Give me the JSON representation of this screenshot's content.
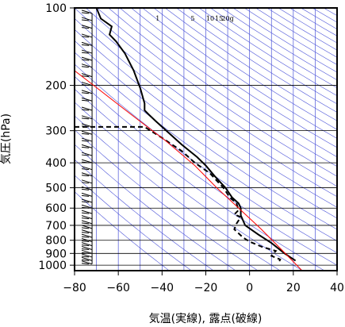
{
  "chart_data": {
    "type": "line",
    "title": "",
    "xlabel": "気温(実線), 露点(破線)",
    "ylabel": "気圧(hPa)",
    "xlim": [
      -80,
      40
    ],
    "ylim": [
      100,
      1050
    ],
    "y_scale": "log",
    "x_ticks": [
      -80,
      -60,
      -40,
      -20,
      0,
      20,
      40
    ],
    "y_ticks": [
      100,
      200,
      300,
      400,
      500,
      600,
      700,
      800,
      900,
      1000
    ],
    "grid": true,
    "mixing_ratio_labels": [
      "1",
      "5",
      "10",
      "15",
      "20g"
    ],
    "series": [
      {
        "style": "solid",
        "color": "#000000",
        "points": [
          [
            -70,
            100
          ],
          [
            -68,
            110
          ],
          [
            -63,
            118
          ],
          [
            -64,
            127
          ],
          [
            -61,
            135
          ],
          [
            -57,
            150
          ],
          [
            -53,
            175
          ],
          [
            -50,
            205
          ],
          [
            -48,
            235
          ],
          [
            -48,
            250
          ],
          [
            -46,
            260
          ],
          [
            -43,
            275
          ],
          [
            -38,
            300
          ],
          [
            -31,
            340
          ],
          [
            -24,
            380
          ],
          [
            -20,
            410
          ],
          [
            -16,
            450
          ],
          [
            -11,
            500
          ],
          [
            -8,
            545
          ],
          [
            -5,
            575
          ],
          [
            -4,
            600
          ],
          [
            -4,
            640
          ],
          [
            -2,
            700
          ],
          [
            4,
            760
          ],
          [
            10,
            820
          ],
          [
            16,
            900
          ],
          [
            21,
            960
          ]
        ]
      },
      {
        "style": "dashed",
        "color": "#000000",
        "points": [
          [
            -80,
            290
          ],
          [
            -48,
            290
          ],
          [
            -40,
            320
          ],
          [
            -31,
            360
          ],
          [
            -25,
            400
          ],
          [
            -18,
            440
          ],
          [
            -12,
            500
          ],
          [
            -9,
            545
          ],
          [
            -6,
            575
          ],
          [
            -5,
            610
          ],
          [
            -7,
            635
          ],
          [
            -4,
            650
          ],
          [
            -6,
            690
          ],
          [
            -7,
            725
          ],
          [
            -3,
            780
          ],
          [
            0,
            810
          ],
          [
            6,
            850
          ],
          [
            12,
            880
          ],
          [
            10,
            920
          ],
          [
            14,
            950
          ],
          [
            13,
            990
          ]
        ]
      },
      {
        "style": "solid",
        "color": "#ff0000",
        "points": [
          [
            -82,
            170
          ],
          [
            -54,
            260
          ],
          [
            -38,
            330
          ],
          [
            -25,
            410
          ],
          [
            -15,
            500
          ],
          [
            -5,
            600
          ],
          [
            5,
            720
          ],
          [
            14,
            860
          ],
          [
            19,
            950
          ],
          [
            24,
            1050
          ]
        ]
      }
    ],
    "wind_barbs_x": -72,
    "wind_barbs_pressures": [
      105,
      112,
      120,
      130,
      140,
      150,
      160,
      170,
      185,
      200,
      215,
      230,
      250,
      270,
      290,
      310,
      330,
      350,
      375,
      400,
      425,
      450,
      480,
      510,
      540,
      570,
      600,
      630,
      660,
      690,
      720,
      750,
      780,
      810,
      840,
      870,
      900,
      930,
      960,
      990
    ]
  }
}
